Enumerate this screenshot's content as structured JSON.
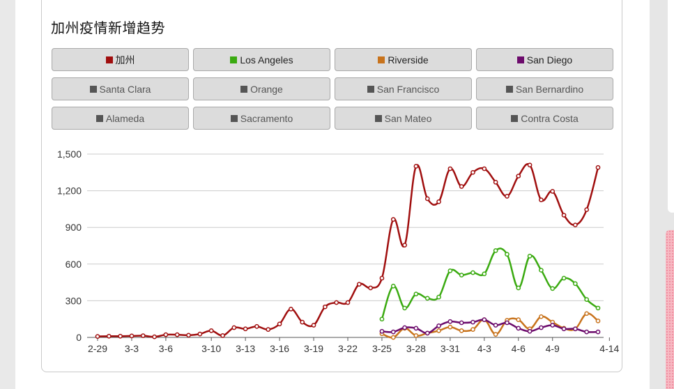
{
  "title": "加州疫情新增趋势",
  "legend": [
    {
      "label": "加州",
      "color": "#a00e0e",
      "active": true
    },
    {
      "label": "Los Angeles",
      "color": "#3aaa10",
      "active": true
    },
    {
      "label": "Riverside",
      "color": "#c8731c",
      "active": true
    },
    {
      "label": "San Diego",
      "color": "#6c0b6c",
      "active": true
    },
    {
      "label": "Santa Clara",
      "color": "#555555",
      "active": false
    },
    {
      "label": "Orange",
      "color": "#555555",
      "active": false
    },
    {
      "label": "San Francisco",
      "color": "#555555",
      "active": false
    },
    {
      "label": "San Bernardino",
      "color": "#555555",
      "active": false
    },
    {
      "label": "Alameda",
      "color": "#555555",
      "active": false
    },
    {
      "label": "Sacramento",
      "color": "#555555",
      "active": false
    },
    {
      "label": "San Mateo",
      "color": "#555555",
      "active": false
    },
    {
      "label": "Contra Costa",
      "color": "#555555",
      "active": false
    }
  ],
  "chart_data": {
    "type": "line",
    "x_start": "2-29",
    "x_end": "4-14",
    "xticks": [
      "2-29",
      "3-3",
      "3-6",
      "3-10",
      "3-13",
      "3-16",
      "3-19",
      "3-22",
      "3-25",
      "3-28",
      "3-31",
      "4-3",
      "4-6",
      "4-9",
      "4-14"
    ],
    "yticks": [
      0,
      300,
      600,
      900,
      1200,
      1500
    ],
    "ytick_labels": [
      "0",
      "300",
      "600",
      "900",
      "1,200",
      "1,500"
    ],
    "ylim": [
      0,
      1500
    ],
    "grid": true,
    "series": [
      {
        "name": "加州",
        "color": "#a00e0e",
        "start_index": 0,
        "values": [
          8,
          10,
          10,
          12,
          14,
          5,
          22,
          22,
          18,
          28,
          55,
          15,
          80,
          70,
          90,
          65,
          110,
          232,
          125,
          100,
          250,
          285,
          285,
          435,
          405,
          485,
          965,
          755,
          1400,
          1135,
          1110,
          1380,
          1235,
          1350,
          1380,
          1270,
          1155,
          1320,
          1410,
          1125,
          1195,
          1000,
          920,
          1045,
          1390
        ]
      },
      {
        "name": "Los Angeles",
        "color": "#3aaa10",
        "start_index": 25,
        "values": [
          150,
          420,
          240,
          355,
          320,
          330,
          545,
          510,
          530,
          520,
          710,
          680,
          405,
          665,
          550,
          400,
          485,
          440,
          310,
          240
        ]
      },
      {
        "name": "Riverside",
        "color": "#c8731c",
        "start_index": 25,
        "values": [
          30,
          0,
          75,
          15,
          35,
          55,
          85,
          55,
          65,
          145,
          25,
          140,
          145,
          70,
          170,
          125,
          75,
          70,
          195,
          135
        ]
      },
      {
        "name": "San Diego",
        "color": "#6c0b6c",
        "start_index": 25,
        "values": [
          50,
          45,
          80,
          75,
          35,
          95,
          130,
          120,
          125,
          145,
          100,
          120,
          75,
          50,
          80,
          100,
          70,
          70,
          45,
          45
        ]
      }
    ]
  }
}
